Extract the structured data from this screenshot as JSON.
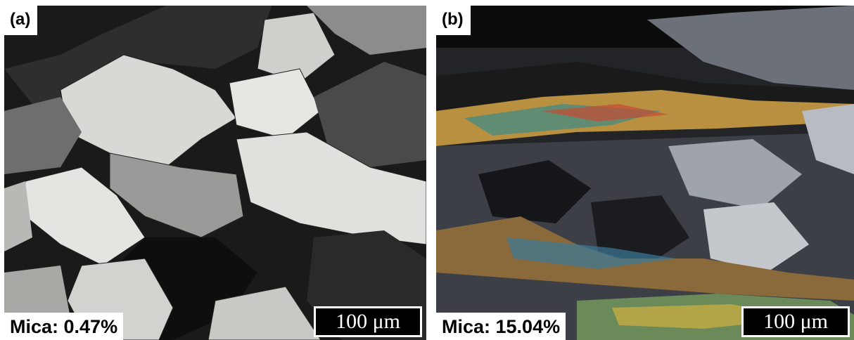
{
  "panels": [
    {
      "label": "(a)",
      "caption": "Mica: 0.47%",
      "scale_bar": "100 μm"
    },
    {
      "label": "(b)",
      "caption": "Mica: 15.04%",
      "scale_bar": "100 μm"
    }
  ]
}
